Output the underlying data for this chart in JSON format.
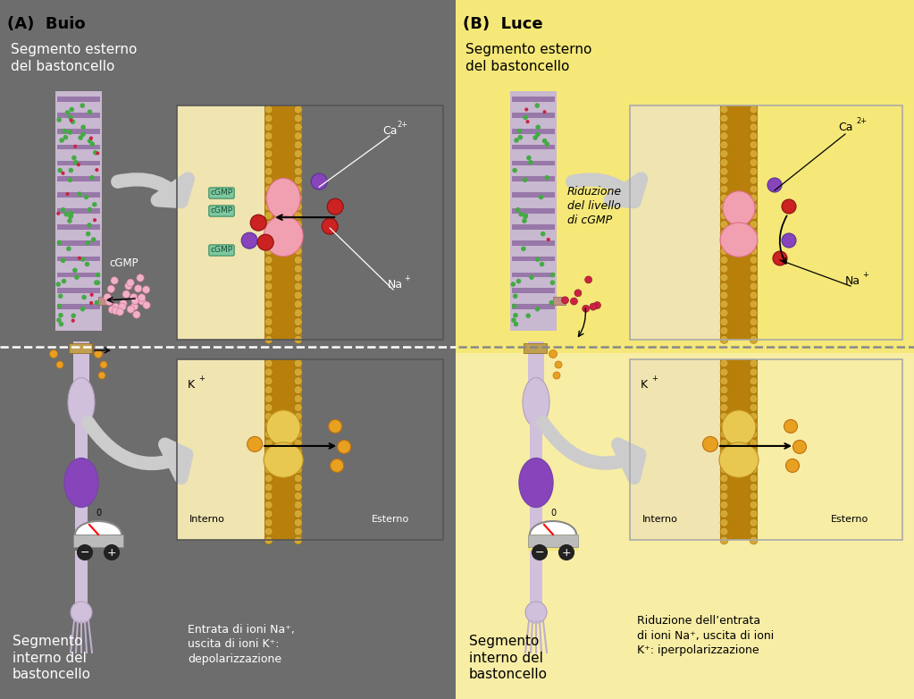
{
  "fig_width": 10.23,
  "fig_height": 7.82,
  "panel_A_bg": "#6d6d6d",
  "panel_B_bg": "#f5e87a",
  "inset_bg_light": "#f0e4b0",
  "membrane_bead_color": "#d4a830",
  "membrane_base_color": "#b8800a",
  "rod_body_color": "#c8b8d0",
  "rod_disc_color": "#9878a8",
  "green_dot": "#44aa44",
  "red_dot": "#cc2244",
  "cgmp_box_fc": "#7dc8a0",
  "cgmp_box_ec": "#3a8a60",
  "cgmp_text": "#1a4a30",
  "pink_ch": "#f0a0b0",
  "pink_ch_ec": "#e07088",
  "yellow_ch": "#e8c850",
  "yellow_ch_ec": "#c09020",
  "ca_color": "#8844bb",
  "na_color": "#cc2222",
  "k_color": "#e8a020",
  "k_ec": "#c07010",
  "arrow_gray": "#cccccc",
  "white": "#ffffff",
  "black": "#000000",
  "title_A": "(A)  Buio",
  "title_B": "(B)  Luce",
  "seg_ext": "Segmento esterno\ndel bastoncello",
  "seg_int": "Segmento\ninterno del\nbastoncello",
  "cgmp_lbl": "cGMP",
  "interno": "Interno",
  "esterno": "Esterno",
  "depol": "Entrata di ioni Na⁺,\nuscita di ioni K⁺:\ndepolarizzazione",
  "riduzione": "Riduzione\ndel livello\ndi cGMP",
  "iperpol": "Riduzione dell’entrata\ndi ioni Na⁺, uscita di ioni\nK⁺: iperpolarizzazione"
}
